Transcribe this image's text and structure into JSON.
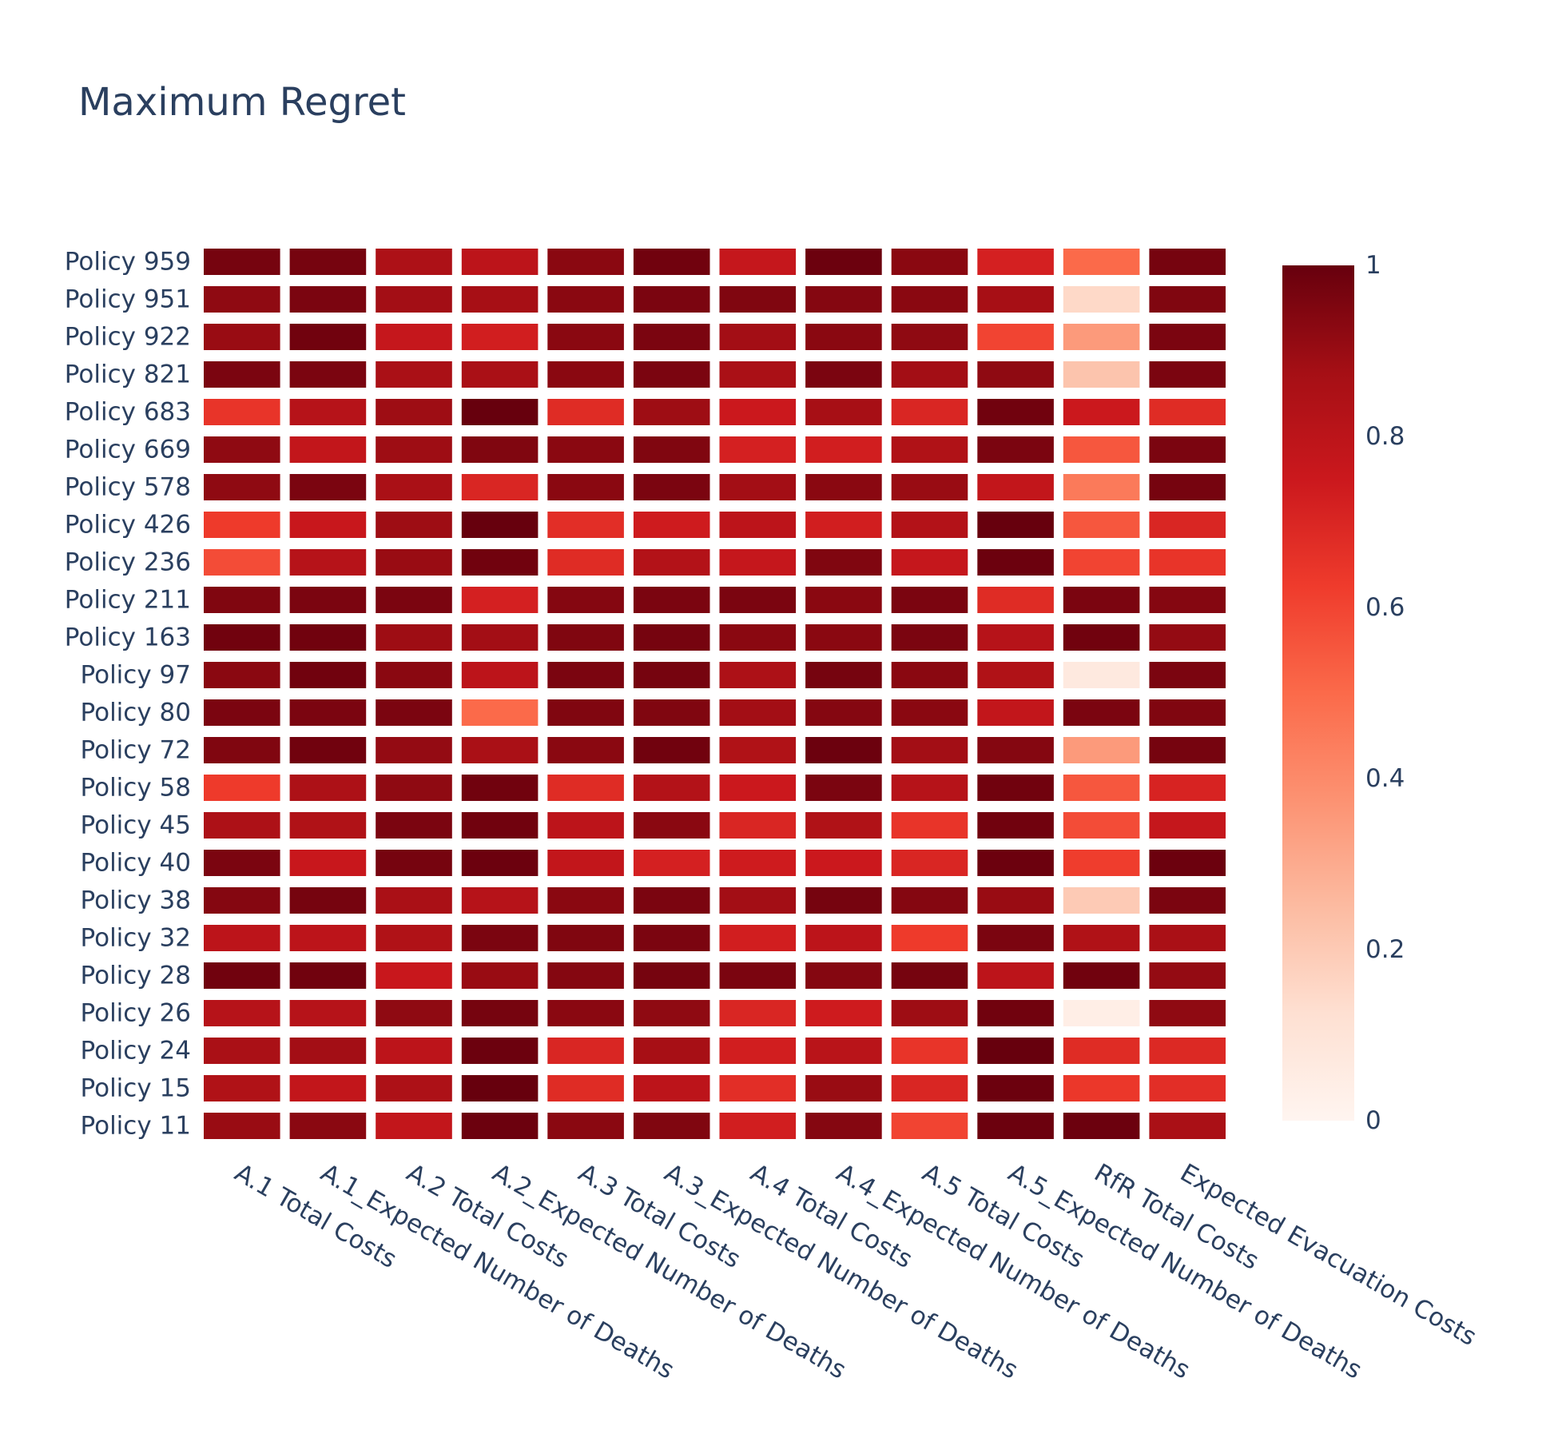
{
  "chart_data": {
    "type": "heatmap",
    "title": "Maximum Regret",
    "colorscale": "Reds",
    "zlim": [
      0,
      1
    ],
    "colorbar_ticks": [
      "0",
      "0.2",
      "0.4",
      "0.6",
      "0.8",
      "1"
    ],
    "x": [
      "A.1 Total Costs",
      "A.1_Expected Number of Deaths",
      "A.2 Total Costs",
      "A.2_Expected Number of Deaths",
      "A.3 Total Costs",
      "A.3_Expected Number of Deaths",
      "A.4 Total Costs",
      "A.4_Expected Number of Deaths",
      "A.5 Total Costs",
      "A.5_Expected Number of Deaths",
      "RfR Total Costs",
      "Expected Evacuation Costs"
    ],
    "y": [
      "Policy 959",
      "Policy 951",
      "Policy 922",
      "Policy 821",
      "Policy 683",
      "Policy 669",
      "Policy 578",
      "Policy 426",
      "Policy 236",
      "Policy 211",
      "Policy 163",
      "Policy 97",
      "Policy 80",
      "Policy 72",
      "Policy 58",
      "Policy 45",
      "Policy 40",
      "Policy 38",
      "Policy 32",
      "Policy 28",
      "Policy 26",
      "Policy 24",
      "Policy 15",
      "Policy 11"
    ],
    "z": [
      [
        0.97,
        0.97,
        0.85,
        0.8,
        0.93,
        0.98,
        0.77,
        0.99,
        0.93,
        0.72,
        0.5,
        0.97
      ],
      [
        0.92,
        0.96,
        0.88,
        0.87,
        0.93,
        0.96,
        0.95,
        0.94,
        0.93,
        0.87,
        0.15,
        0.95
      ],
      [
        0.9,
        0.98,
        0.77,
        0.73,
        0.93,
        0.96,
        0.88,
        0.93,
        0.92,
        0.6,
        0.35,
        0.96
      ],
      [
        0.96,
        0.96,
        0.86,
        0.86,
        0.93,
        0.96,
        0.86,
        0.96,
        0.88,
        0.92,
        0.22,
        0.96
      ],
      [
        0.65,
        0.82,
        0.89,
        1.0,
        0.68,
        0.89,
        0.75,
        0.87,
        0.7,
        0.98,
        0.75,
        0.68
      ],
      [
        0.92,
        0.78,
        0.89,
        0.95,
        0.93,
        0.95,
        0.72,
        0.73,
        0.84,
        0.96,
        0.55,
        0.96
      ],
      [
        0.92,
        0.96,
        0.86,
        0.7,
        0.93,
        0.96,
        0.88,
        0.93,
        0.9,
        0.78,
        0.45,
        0.97
      ],
      [
        0.63,
        0.76,
        0.89,
        1.0,
        0.67,
        0.74,
        0.8,
        0.73,
        0.83,
        1.0,
        0.55,
        0.7
      ],
      [
        0.58,
        0.82,
        0.9,
        0.98,
        0.68,
        0.83,
        0.77,
        0.95,
        0.77,
        0.99,
        0.6,
        0.65
      ],
      [
        0.95,
        0.96,
        0.96,
        0.72,
        0.94,
        0.96,
        0.96,
        0.93,
        0.96,
        0.68,
        0.96,
        0.94
      ],
      [
        0.98,
        0.98,
        0.89,
        0.88,
        0.95,
        0.97,
        0.93,
        0.93,
        0.96,
        0.82,
        0.98,
        0.91
      ],
      [
        0.93,
        0.98,
        0.93,
        0.8,
        0.96,
        0.97,
        0.85,
        0.97,
        0.93,
        0.84,
        0.07,
        0.96
      ],
      [
        0.96,
        0.96,
        0.96,
        0.5,
        0.95,
        0.95,
        0.88,
        0.94,
        0.93,
        0.78,
        0.96,
        0.95
      ],
      [
        0.95,
        0.98,
        0.91,
        0.86,
        0.93,
        0.98,
        0.84,
        0.99,
        0.88,
        0.94,
        0.35,
        0.97
      ],
      [
        0.63,
        0.85,
        0.92,
        0.98,
        0.68,
        0.83,
        0.75,
        0.96,
        0.82,
        0.98,
        0.55,
        0.71
      ],
      [
        0.85,
        0.84,
        0.96,
        0.98,
        0.8,
        0.93,
        0.7,
        0.84,
        0.65,
        0.98,
        0.58,
        0.77
      ],
      [
        0.96,
        0.76,
        0.97,
        0.99,
        0.78,
        0.72,
        0.74,
        0.75,
        0.7,
        0.99,
        0.62,
        0.99
      ],
      [
        0.94,
        0.97,
        0.86,
        0.82,
        0.93,
        0.96,
        0.88,
        0.97,
        0.94,
        0.9,
        0.2,
        0.96
      ],
      [
        0.8,
        0.8,
        0.84,
        0.96,
        0.95,
        0.96,
        0.73,
        0.8,
        0.63,
        0.96,
        0.84,
        0.86
      ],
      [
        0.98,
        0.98,
        0.76,
        0.9,
        0.94,
        0.97,
        0.96,
        0.94,
        0.97,
        0.8,
        0.98,
        0.91
      ],
      [
        0.82,
        0.82,
        0.92,
        0.97,
        0.93,
        0.92,
        0.7,
        0.74,
        0.89,
        0.98,
        0.04,
        0.92
      ],
      [
        0.86,
        0.88,
        0.8,
        0.99,
        0.7,
        0.87,
        0.73,
        0.81,
        0.65,
        1.0,
        0.68,
        0.69
      ],
      [
        0.84,
        0.78,
        0.85,
        1.0,
        0.68,
        0.8,
        0.67,
        0.9,
        0.7,
        0.99,
        0.64,
        0.67
      ],
      [
        0.9,
        0.93,
        0.78,
        0.99,
        0.93,
        0.95,
        0.73,
        0.94,
        0.6,
        0.99,
        0.99,
        0.86
      ]
    ]
  }
}
